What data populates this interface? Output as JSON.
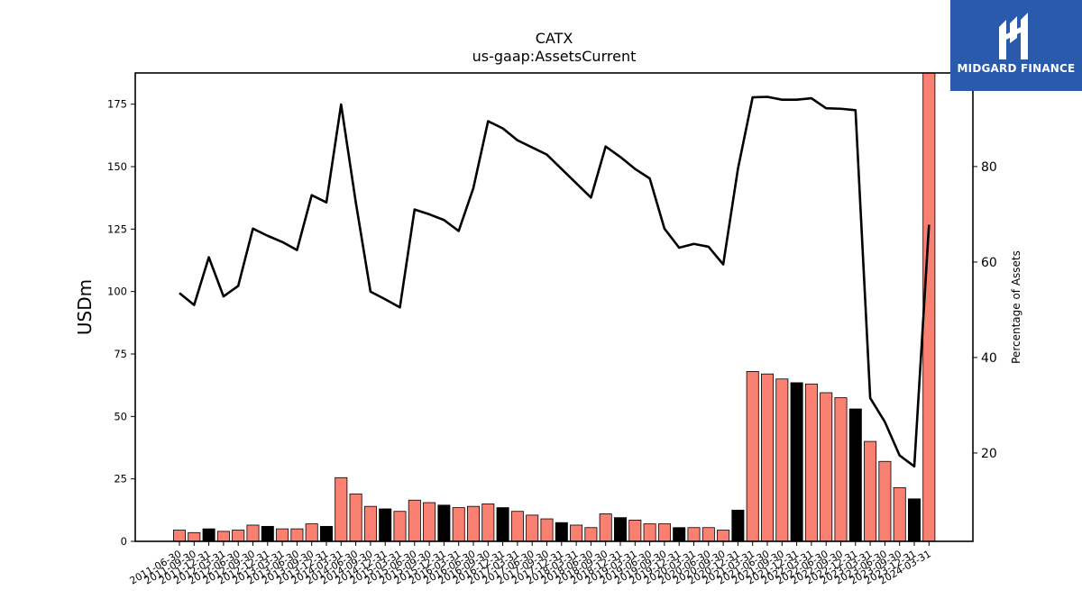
{
  "chart_data": {
    "type": "bar",
    "title": "CATX",
    "subtitle": "us-gaap:AssetsCurrent",
    "ylabel": "USDm",
    "ylabel_right": "Percentage of Assets",
    "ylim": [
      0,
      187.5
    ],
    "ylim_right": [
      1.5,
      99.6
    ],
    "yticks": [
      0,
      25,
      50,
      75,
      100,
      125,
      150,
      175
    ],
    "yticks_right": [
      20,
      40,
      60,
      80
    ],
    "categories": [
      "2011-06-30",
      "2011-09-30",
      "2011-12-31",
      "2012-03-31",
      "2012-06-30",
      "2012-09-30",
      "2012-12-31",
      "2013-03-31",
      "2013-06-30",
      "2013-09-30",
      "2013-12-31",
      "2014-03-31",
      "2014-06-30",
      "2014-09-30",
      "2014-12-31",
      "2015-03-31",
      "2015-06-30",
      "2015-09-30",
      "2015-12-31",
      "2016-03-31",
      "2016-06-30",
      "2016-09-30",
      "2016-12-31",
      "2017-03-31",
      "2017-06-30",
      "2017-09-30",
      "2017-12-31",
      "2018-03-31",
      "2018-06-30",
      "2018-09-30",
      "2018-12-31",
      "2019-03-31",
      "2019-06-30",
      "2019-09-30",
      "2019-12-31",
      "2020-03-31",
      "2020-06-30",
      "2020-09-30",
      "2020-12-31",
      "2021-03-31",
      "2021-06-30",
      "2021-09-30",
      "2021-12-31",
      "2022-03-31",
      "2022-06-30",
      "2022-09-30",
      "2022-12-31",
      "2023-03-31",
      "2023-06-30",
      "2023-09-30",
      "2023-12-31",
      "2024-03-31"
    ],
    "series": [
      {
        "kind": "bar",
        "values": [
          4.5,
          3.5,
          5.0,
          4.0,
          4.5,
          6.5,
          6.0,
          5.0,
          5.0,
          7.0,
          6.0,
          25.5,
          19.0,
          14.0,
          13.0,
          12.0,
          16.5,
          15.5,
          14.5,
          13.5,
          14.0,
          15.0,
          13.5,
          12.0,
          10.5,
          9.0,
          7.5,
          6.5,
          5.5,
          11.0,
          9.5,
          8.5,
          7.0,
          7.0,
          5.5,
          5.5,
          5.5,
          4.5,
          12.5,
          68.0,
          67.0,
          65.0,
          63.5,
          63.0,
          59.5,
          57.5,
          53.0,
          40.0,
          32.0,
          21.5,
          17.0,
          188.0
        ],
        "colors": [
          "#fa8072",
          "#fa8072",
          "#000000",
          "#fa8072",
          "#fa8072",
          "#fa8072",
          "#000000",
          "#fa8072",
          "#fa8072",
          "#fa8072",
          "#000000",
          "#fa8072",
          "#fa8072",
          "#fa8072",
          "#000000",
          "#fa8072",
          "#fa8072",
          "#fa8072",
          "#000000",
          "#fa8072",
          "#fa8072",
          "#fa8072",
          "#000000",
          "#fa8072",
          "#fa8072",
          "#fa8072",
          "#000000",
          "#fa8072",
          "#fa8072",
          "#fa8072",
          "#000000",
          "#fa8072",
          "#fa8072",
          "#fa8072",
          "#000000",
          "#fa8072",
          "#fa8072",
          "#fa8072",
          "#000000",
          "#fa8072",
          "#fa8072",
          "#fa8072",
          "#000000",
          "#fa8072",
          "#fa8072",
          "#fa8072",
          "#000000",
          "#fa8072",
          "#fa8072",
          "#fa8072",
          "#000000",
          "#fa8072"
        ]
      },
      {
        "kind": "line",
        "axis": "right",
        "color": "#000000",
        "values": [
          53.5,
          51.0,
          61.0,
          52.8,
          55.0,
          67.0,
          65.5,
          64.2,
          62.5,
          74.0,
          72.5,
          93.0,
          72.5,
          53.8,
          52.2,
          50.5,
          71.0,
          70.0,
          68.8,
          66.5,
          75.5,
          89.5,
          88.0,
          85.5,
          84.0,
          82.5,
          79.5,
          76.5,
          73.5,
          84.2,
          82.0,
          79.5,
          77.5,
          67.0,
          63.0,
          63.8,
          63.2,
          59.5,
          79.5,
          94.5,
          94.6,
          94.0,
          94.0,
          94.3,
          92.2,
          92.1,
          91.8,
          31.5,
          26.5,
          19.5,
          17.2,
          67.8
        ]
      }
    ],
    "grid": false
  },
  "logo": {
    "name": "MIDGARD FINANCE",
    "bg": "#2a5aac"
  }
}
